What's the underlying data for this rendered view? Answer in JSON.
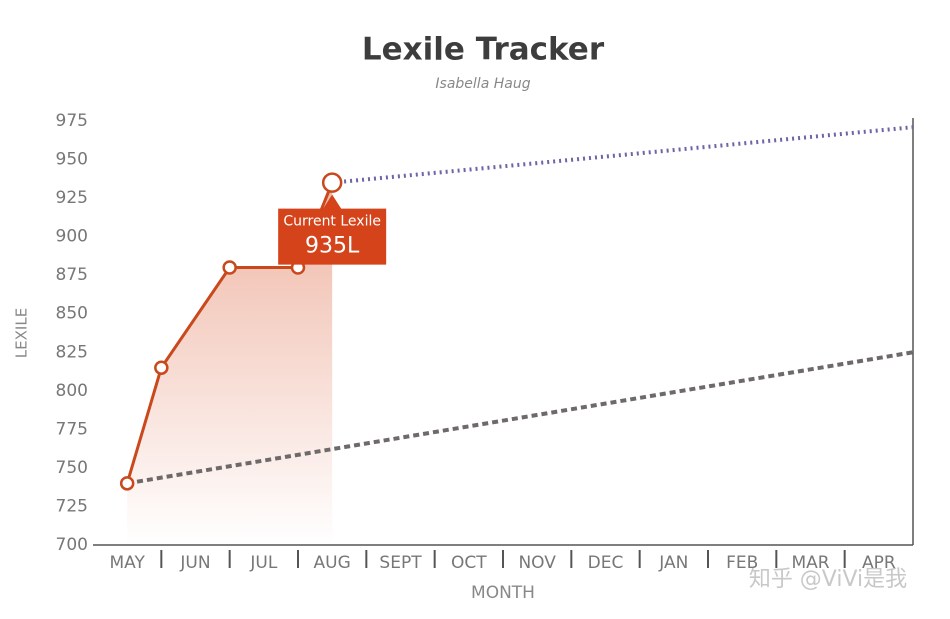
{
  "chart_data": {
    "type": "line",
    "title": "Lexile Tracker",
    "subtitle": "Isabella Haug",
    "x_label": "MONTH",
    "y_label": "LEXILE",
    "categories": [
      "MAY",
      "JUN",
      "JUL",
      "AUG",
      "SEPT",
      "OCT",
      "NOV",
      "DEC",
      "JAN",
      "FEB",
      "MAR",
      "APR"
    ],
    "series": [
      {
        "color": "#c9491c",
        "style": "solid",
        "x": [
          0,
          0.5,
          1.5,
          2.5,
          3
        ],
        "values": [
          740,
          815,
          880,
          880,
          935
        ],
        "value_labels": [
          null,
          null,
          null,
          null,
          "935L"
        ]
      },
      {
        "color": "#6e64a8",
        "style": "dotted",
        "x": [
          3,
          11.5
        ],
        "values": [
          935,
          971
        ]
      },
      {
        "color": "#6f6a6a",
        "style": "dashed",
        "x": [
          0,
          11.5
        ],
        "values": [
          740,
          825
        ]
      }
    ],
    "annotation": "Current Lexile",
    "ylim": [
      700,
      975
    ],
    "yticks": [
      700,
      725,
      750,
      775,
      800,
      825,
      850,
      875,
      900,
      925,
      950,
      975
    ],
    "grid": false,
    "legend": false,
    "watermark": "知乎 @ViVi是我"
  }
}
